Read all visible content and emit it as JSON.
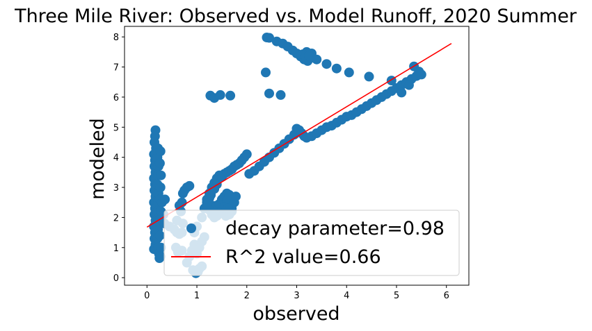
{
  "chart_data": {
    "type": "scatter",
    "title": "Three Mile River: Observed vs. Model Runoff, 2020 Summer",
    "xlabel": "observed",
    "ylabel": "modeled",
    "xlim": [
      -0.45,
      6.45
    ],
    "ylim": [
      -0.25,
      8.35
    ],
    "xticks": [
      0,
      1,
      2,
      3,
      4,
      5,
      6
    ],
    "yticks": [
      0,
      1,
      2,
      3,
      4,
      5,
      6,
      7,
      8
    ],
    "grid": false,
    "legend_location": "lower-right",
    "series": [
      {
        "name": "decay parameter=0.98",
        "kind": "scatter",
        "color": "#1f77b4",
        "points": [
          [
            0.17,
            4.9
          ],
          [
            0.16,
            4.7
          ],
          [
            0.15,
            4.5
          ],
          [
            0.18,
            4.3
          ],
          [
            0.14,
            4.1
          ],
          [
            0.16,
            3.9
          ],
          [
            0.15,
            3.7
          ],
          [
            0.17,
            3.5
          ],
          [
            0.14,
            3.3
          ],
          [
            0.16,
            3.1
          ],
          [
            0.15,
            2.9
          ],
          [
            0.17,
            2.7
          ],
          [
            0.14,
            2.5
          ],
          [
            0.16,
            2.3
          ],
          [
            0.15,
            2.1
          ],
          [
            0.17,
            1.9
          ],
          [
            0.14,
            1.7
          ],
          [
            0.16,
            1.5
          ],
          [
            0.15,
            1.3
          ],
          [
            0.17,
            1.1
          ],
          [
            0.14,
            0.95
          ],
          [
            0.22,
            4.3
          ],
          [
            0.21,
            4.0
          ],
          [
            0.23,
            3.7
          ],
          [
            0.22,
            3.4
          ],
          [
            0.21,
            3.1
          ],
          [
            0.23,
            2.8
          ],
          [
            0.22,
            2.5
          ],
          [
            0.21,
            2.2
          ],
          [
            0.23,
            1.9
          ],
          [
            0.22,
            1.6
          ],
          [
            0.21,
            1.3
          ],
          [
            0.23,
            1.0
          ],
          [
            0.24,
            0.8
          ],
          [
            0.25,
            0.65
          ],
          [
            0.27,
            4.2
          ],
          [
            0.26,
            3.8
          ],
          [
            0.28,
            3.4
          ],
          [
            0.27,
            3.0
          ],
          [
            0.26,
            2.6
          ],
          [
            0.28,
            2.2
          ],
          [
            0.27,
            1.8
          ],
          [
            0.26,
            1.4
          ],
          [
            0.28,
            1.0
          ],
          [
            0.27,
            0.7
          ],
          [
            0.3,
            2.5
          ],
          [
            0.33,
            2.1
          ],
          [
            0.35,
            1.8
          ],
          [
            0.36,
            2.6
          ],
          [
            0.45,
            1.7
          ],
          [
            0.55,
            1.6
          ],
          [
            0.6,
            1.5
          ],
          [
            0.65,
            1.45
          ],
          [
            0.7,
            1.5
          ],
          [
            0.72,
            1.8
          ],
          [
            0.68,
            2.2
          ],
          [
            0.7,
            2.5
          ],
          [
            0.72,
            2.8
          ],
          [
            0.75,
            2.9
          ],
          [
            0.8,
            3.0
          ],
          [
            0.85,
            3.05
          ],
          [
            0.65,
            2.4
          ],
          [
            0.6,
            1.9
          ],
          [
            0.58,
            1.0
          ],
          [
            0.62,
            0.85
          ],
          [
            0.7,
            0.9
          ],
          [
            0.8,
            0.5
          ],
          [
            0.85,
            0.7
          ],
          [
            0.9,
            0.9
          ],
          [
            0.95,
            1.1
          ],
          [
            0.92,
            0.25
          ],
          [
            0.98,
            0.15
          ],
          [
            1.02,
            0.2
          ],
          [
            1.05,
            0.3
          ],
          [
            1.1,
            0.38
          ],
          [
            1.0,
            0.8
          ],
          [
            1.05,
            1.0
          ],
          [
            1.1,
            1.2
          ],
          [
            1.15,
            1.35
          ],
          [
            0.95,
            1.5
          ],
          [
            1.0,
            1.7
          ],
          [
            1.1,
            2.0
          ],
          [
            1.15,
            2.3
          ],
          [
            1.2,
            2.6
          ],
          [
            1.25,
            2.8
          ],
          [
            1.3,
            3.0
          ],
          [
            1.35,
            3.15
          ],
          [
            1.4,
            3.3
          ],
          [
            1.45,
            3.4
          ],
          [
            1.5,
            3.35
          ],
          [
            1.55,
            3.45
          ],
          [
            1.6,
            3.5
          ],
          [
            1.65,
            3.55
          ],
          [
            1.7,
            3.6
          ],
          [
            1.75,
            3.7
          ],
          [
            1.8,
            3.75
          ],
          [
            1.85,
            3.8
          ],
          [
            1.9,
            3.9
          ],
          [
            1.95,
            4.0
          ],
          [
            2.0,
            4.1
          ],
          [
            1.3,
            2.9
          ],
          [
            1.35,
            2.95
          ],
          [
            1.4,
            3.1
          ],
          [
            1.2,
            2.5
          ],
          [
            1.25,
            2.65
          ],
          [
            1.28,
            2.75
          ],
          [
            1.3,
            2.4
          ],
          [
            1.35,
            2.35
          ],
          [
            1.4,
            2.4
          ],
          [
            1.45,
            2.45
          ],
          [
            1.5,
            2.6
          ],
          [
            1.55,
            2.7
          ],
          [
            1.6,
            2.8
          ],
          [
            1.65,
            2.75
          ],
          [
            1.6,
            2.55
          ],
          [
            1.55,
            2.35
          ],
          [
            1.5,
            2.25
          ],
          [
            1.45,
            2.15
          ],
          [
            1.4,
            2.05
          ],
          [
            1.35,
            2.0
          ],
          [
            1.3,
            2.1
          ],
          [
            1.25,
            2.25
          ],
          [
            1.2,
            2.4
          ],
          [
            1.58,
            2.05
          ],
          [
            1.65,
            2.1
          ],
          [
            1.7,
            2.3
          ],
          [
            1.75,
            2.5
          ],
          [
            1.78,
            2.7
          ],
          [
            1.7,
            2.2
          ],
          [
            1.62,
            2.3
          ],
          [
            1.27,
            6.05
          ],
          [
            1.35,
            5.97
          ],
          [
            1.47,
            6.07
          ],
          [
            1.67,
            6.05
          ],
          [
            2.05,
            3.45
          ],
          [
            2.15,
            3.55
          ],
          [
            2.25,
            3.7
          ],
          [
            2.35,
            3.85
          ],
          [
            2.45,
            4.0
          ],
          [
            2.55,
            4.15
          ],
          [
            2.65,
            4.3
          ],
          [
            2.75,
            4.45
          ],
          [
            2.85,
            4.6
          ],
          [
            2.95,
            4.75
          ],
          [
            3.0,
            4.95
          ],
          [
            3.05,
            4.9
          ],
          [
            3.1,
            4.8
          ],
          [
            3.15,
            4.7
          ],
          [
            3.2,
            4.65
          ],
          [
            3.3,
            4.7
          ],
          [
            3.4,
            4.8
          ],
          [
            3.5,
            4.9
          ],
          [
            3.6,
            5.0
          ],
          [
            3.7,
            5.05
          ],
          [
            3.8,
            5.15
          ],
          [
            3.9,
            5.25
          ],
          [
            4.0,
            5.35
          ],
          [
            4.1,
            5.4
          ],
          [
            4.2,
            5.5
          ],
          [
            4.3,
            5.6
          ],
          [
            4.4,
            5.7
          ],
          [
            4.5,
            5.8
          ],
          [
            4.6,
            5.9
          ],
          [
            4.7,
            6.0
          ],
          [
            4.8,
            6.1
          ],
          [
            4.9,
            6.2
          ],
          [
            5.0,
            6.3
          ],
          [
            5.1,
            6.4
          ],
          [
            5.2,
            6.5
          ],
          [
            5.3,
            6.6
          ],
          [
            5.4,
            6.7
          ],
          [
            5.5,
            6.75
          ],
          [
            2.38,
            6.82
          ],
          [
            2.45,
            6.12
          ],
          [
            2.68,
            6.07
          ],
          [
            2.4,
            7.98
          ],
          [
            2.45,
            7.97
          ],
          [
            2.6,
            7.85
          ],
          [
            2.72,
            7.78
          ],
          [
            2.82,
            7.68
          ],
          [
            2.92,
            7.55
          ],
          [
            3.0,
            7.45
          ],
          [
            3.08,
            7.35
          ],
          [
            3.15,
            7.25
          ],
          [
            3.22,
            7.2
          ],
          [
            3.28,
            7.3
          ],
          [
            3.3,
            7.45
          ],
          [
            3.2,
            7.5
          ],
          [
            3.12,
            7.42
          ],
          [
            3.18,
            7.35
          ],
          [
            3.25,
            7.38
          ],
          [
            3.4,
            7.25
          ],
          [
            3.6,
            7.1
          ],
          [
            3.8,
            6.95
          ],
          [
            4.05,
            6.82
          ],
          [
            4.45,
            6.68
          ],
          [
            4.9,
            6.55
          ],
          [
            5.35,
            7.02
          ],
          [
            5.45,
            6.85
          ],
          [
            5.1,
            6.15
          ],
          [
            5.25,
            6.4
          ]
        ]
      },
      {
        "name": "R^2 value=0.66",
        "kind": "line",
        "color": "#ff0000",
        "x": [
          0,
          6.1
        ],
        "y": [
          1.68,
          7.78
        ]
      }
    ]
  }
}
